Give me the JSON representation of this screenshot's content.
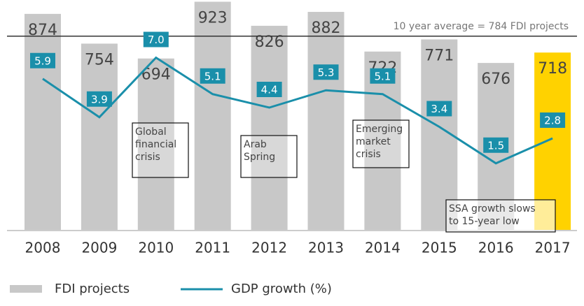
{
  "chart_data": {
    "type": "bar-line",
    "categories": [
      "2008",
      "2009",
      "2010",
      "2011",
      "2012",
      "2013",
      "2014",
      "2015",
      "2016",
      "2017"
    ],
    "series": [
      {
        "name": "FDI projects",
        "color": "#c8c8c8",
        "values": [
          874,
          754,
          694,
          923,
          826,
          882,
          722,
          771,
          676,
          718
        ],
        "bar_colors": [
          "#c8c8c8",
          "#c8c8c8",
          "#c8c8c8",
          "#c8c8c8",
          "#c8c8c8",
          "#c8c8c8",
          "#c8c8c8",
          "#c8c8c8",
          "#c8c8c8",
          "#ffd200"
        ]
      },
      {
        "name": "GDP growth (%)",
        "color": "#1a8faa",
        "axis": "y2",
        "values": [
          5.9,
          3.9,
          7.0,
          5.1,
          4.4,
          5.3,
          5.1,
          3.4,
          1.5,
          2.8
        ],
        "value_labels": [
          "5.9",
          "3.9",
          "7.0",
          "5.1",
          "4.4",
          "5.3",
          "5.1",
          "3.4",
          "1.5",
          "2.8"
        ]
      }
    ],
    "ylim": [
      0,
      930
    ],
    "y2lim": [
      -2,
      10
    ],
    "average": {
      "value": 784,
      "label": "10 year average = 784 FDI projects"
    },
    "annotations": [
      {
        "lines": [
          "Global",
          "financial",
          "crisis"
        ]
      },
      {
        "lines": [
          "Arab",
          "Spring"
        ]
      },
      {
        "lines": [
          "Emerging",
          "market",
          "crisis"
        ]
      },
      {
        "lines": [
          "SSA growth slows",
          "to 15-year low"
        ]
      }
    ]
  }
}
